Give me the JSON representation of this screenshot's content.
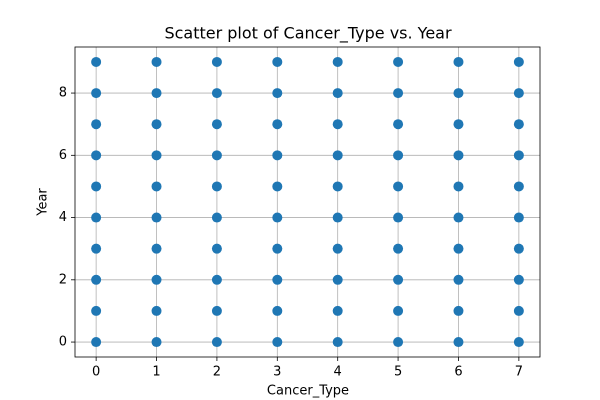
{
  "chart_data": {
    "type": "scatter",
    "title": "Scatter plot of Cancer_Type vs. Year",
    "x_label": "Cancer_Type",
    "y_label": "Year",
    "x": [
      0,
      0,
      0,
      0,
      0,
      0,
      0,
      0,
      0,
      0,
      1,
      1,
      1,
      1,
      1,
      1,
      1,
      1,
      1,
      1,
      2,
      2,
      2,
      2,
      2,
      2,
      2,
      2,
      2,
      2,
      3,
      3,
      3,
      3,
      3,
      3,
      3,
      3,
      3,
      3,
      4,
      4,
      4,
      4,
      4,
      4,
      4,
      4,
      4,
      4,
      5,
      5,
      5,
      5,
      5,
      5,
      5,
      5,
      5,
      5,
      6,
      6,
      6,
      6,
      6,
      6,
      6,
      6,
      6,
      6,
      7,
      7,
      7,
      7,
      7,
      7,
      7,
      7,
      7,
      7
    ],
    "y": [
      0,
      1,
      2,
      3,
      4,
      5,
      6,
      7,
      8,
      9,
      0,
      1,
      2,
      3,
      4,
      5,
      6,
      7,
      8,
      9,
      0,
      1,
      2,
      3,
      4,
      5,
      6,
      7,
      8,
      9,
      0,
      1,
      2,
      3,
      4,
      5,
      6,
      7,
      8,
      9,
      0,
      1,
      2,
      3,
      4,
      5,
      6,
      7,
      8,
      9,
      0,
      1,
      2,
      3,
      4,
      5,
      6,
      7,
      8,
      9,
      0,
      1,
      2,
      3,
      4,
      5,
      6,
      7,
      8,
      9,
      0,
      1,
      2,
      3,
      4,
      5,
      6,
      7,
      8,
      9
    ],
    "color": "#1f77b4",
    "xlim": [
      -0.35,
      7.35
    ],
    "ylim": [
      -0.48,
      9.48
    ],
    "xticks": [
      0,
      1,
      2,
      3,
      4,
      5,
      6,
      7
    ],
    "yticks": [
      0,
      2,
      4,
      6,
      8
    ],
    "grid": true
  }
}
